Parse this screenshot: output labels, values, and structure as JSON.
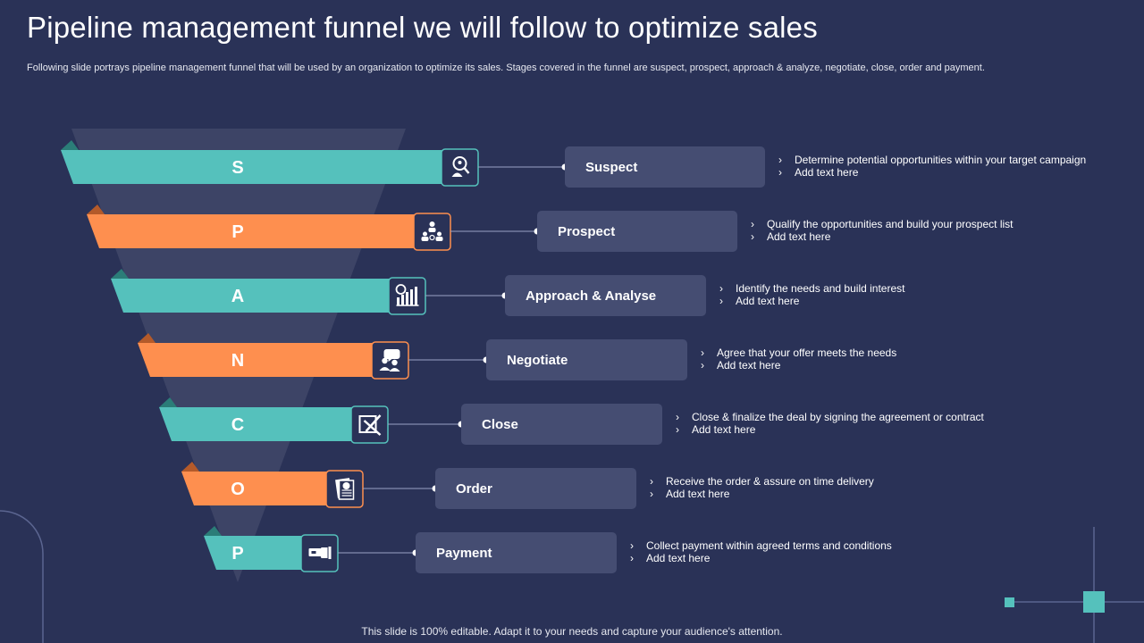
{
  "title": "Pipeline management funnel we will follow to optimize sales",
  "subtitle": "Following slide portrays pipeline management funnel that will be used by an organization to optimize its sales. Stages covered in the funnel are suspect, prospect, approach & analyze, negotiate, close, order and payment.",
  "footer": "This slide is 100% editable. Adapt it to your needs and capture your audience's attention.",
  "colors": {
    "background": "#2a3257",
    "teal": "#55c1bc",
    "orange": "#fe8f4f",
    "box": "#454d72",
    "funnel": "#3d4466"
  },
  "stages": [
    {
      "letter": "S",
      "name": "Suspect",
      "color": "teal",
      "icon": "magnifier-person-icon",
      "points": [
        "Determine potential opportunities within your target campaign",
        "Add text here"
      ]
    },
    {
      "letter": "P",
      "name": "Prospect",
      "color": "orange",
      "icon": "team-network-icon",
      "points": [
        "Qualify the opportunities and build your prospect list",
        "Add text here"
      ]
    },
    {
      "letter": "A",
      "name": "Approach & Analyse",
      "color": "teal",
      "icon": "analytics-icon",
      "points": [
        "Identify the needs and build interest",
        "Add text here"
      ]
    },
    {
      "letter": "N",
      "name": "Negotiate",
      "color": "orange",
      "icon": "discussion-icon",
      "points": [
        "Agree that your offer meets the needs",
        "Add text here"
      ]
    },
    {
      "letter": "C",
      "name": "Close",
      "color": "teal",
      "icon": "close-deal-icon",
      "points": [
        "Close & finalize the deal by signing the agreement or contract",
        "Add text here"
      ]
    },
    {
      "letter": "O",
      "name": "Order",
      "color": "orange",
      "icon": "order-document-icon",
      "points": [
        "Receive the order & assure on time delivery",
        "Add text here"
      ]
    },
    {
      "letter": "P",
      "name": "Payment",
      "color": "teal",
      "icon": "payment-hand-icon",
      "points": [
        "Collect payment within agreed terms and conditions",
        "Add text here"
      ]
    }
  ]
}
